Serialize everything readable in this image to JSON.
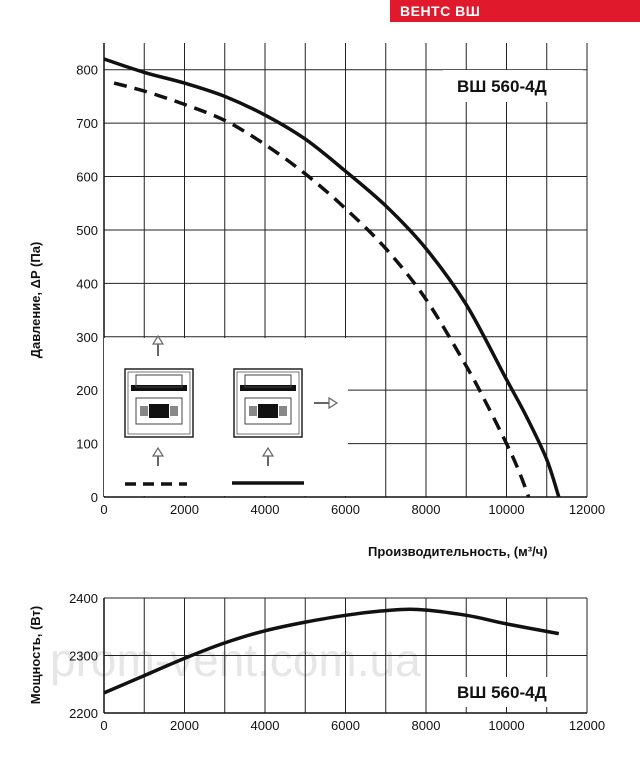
{
  "brand": "ВЕНТС ВШ",
  "watermark": "prom-vent.com.ua",
  "chart_data": [
    {
      "type": "line",
      "title": "ВШ 560-4Д",
      "xlabel": "Производительность, (м³/ч)",
      "ylabel": "Давление, ΔP (Па)",
      "xlim": [
        0,
        12000
      ],
      "ylim": [
        0,
        850
      ],
      "xticks": [
        0,
        2000,
        4000,
        6000,
        8000,
        10000,
        12000
      ],
      "yticks": [
        0,
        100,
        200,
        300,
        400,
        500,
        600,
        700,
        800
      ],
      "series": [
        {
          "name": "solid",
          "style": "solid",
          "x": [
            0,
            1000,
            2000,
            3000,
            4000,
            5000,
            6000,
            7000,
            8000,
            9000,
            10000,
            10500,
            11000,
            11300
          ],
          "y": [
            820,
            795,
            775,
            750,
            715,
            670,
            610,
            545,
            465,
            360,
            220,
            150,
            70,
            0
          ]
        },
        {
          "name": "dashed",
          "style": "dashed",
          "x": [
            250,
            1000,
            2000,
            3000,
            4000,
            5000,
            6000,
            7000,
            8000,
            9000,
            9500,
            10000,
            10300,
            10550
          ],
          "y": [
            775,
            760,
            735,
            705,
            660,
            605,
            540,
            465,
            370,
            245,
            175,
            100,
            50,
            0
          ]
        }
      ]
    },
    {
      "type": "line",
      "title": "ВШ 560-4Д",
      "xlabel": "",
      "ylabel": "Мощность, (Вт)",
      "xlim": [
        0,
        12000
      ],
      "ylim": [
        2200,
        2400
      ],
      "xticks": [
        0,
        2000,
        4000,
        6000,
        8000,
        10000,
        12000
      ],
      "yticks": [
        2200,
        2300,
        2400
      ],
      "series": [
        {
          "name": "power",
          "style": "solid",
          "x": [
            0,
            1000,
            2000,
            3000,
            4000,
            5000,
            6000,
            7000,
            7800,
            9000,
            10000,
            11300
          ],
          "y": [
            2235,
            2265,
            2295,
            2322,
            2343,
            2358,
            2370,
            2378,
            2380,
            2370,
            2355,
            2338
          ]
        }
      ]
    }
  ]
}
